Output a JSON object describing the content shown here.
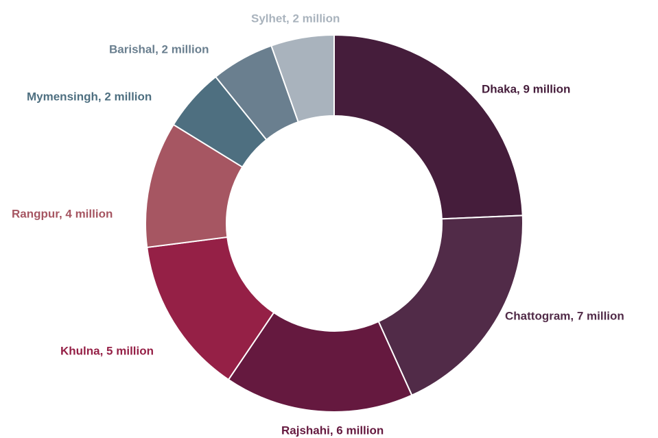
{
  "chart_data": {
    "type": "pie",
    "donut": true,
    "unit": "million",
    "categories": [
      "Dhaka",
      "Chattogram",
      "Rajshahi",
      "Khulna",
      "Rangpur",
      "Mymensingh",
      "Barishal",
      "Sylhet"
    ],
    "values": [
      9,
      7,
      6,
      5,
      4,
      2,
      2,
      2
    ],
    "labels": [
      "Dhaka, 9 million",
      "Chattogram, 7 million",
      "Rajshahi, 6 million",
      "Khulna, 5 million",
      "Rangpur, 4 million",
      "Mymensingh, 2 million",
      "Barishal, 2 million",
      "Sylhet, 2 million"
    ],
    "colors": [
      "#451d3b",
      "#512b48",
      "#65193f",
      "#952046",
      "#a65662",
      "#4e6f80",
      "#6a7f8f",
      "#a9b3bd"
    ],
    "title": "",
    "legend": "none"
  }
}
